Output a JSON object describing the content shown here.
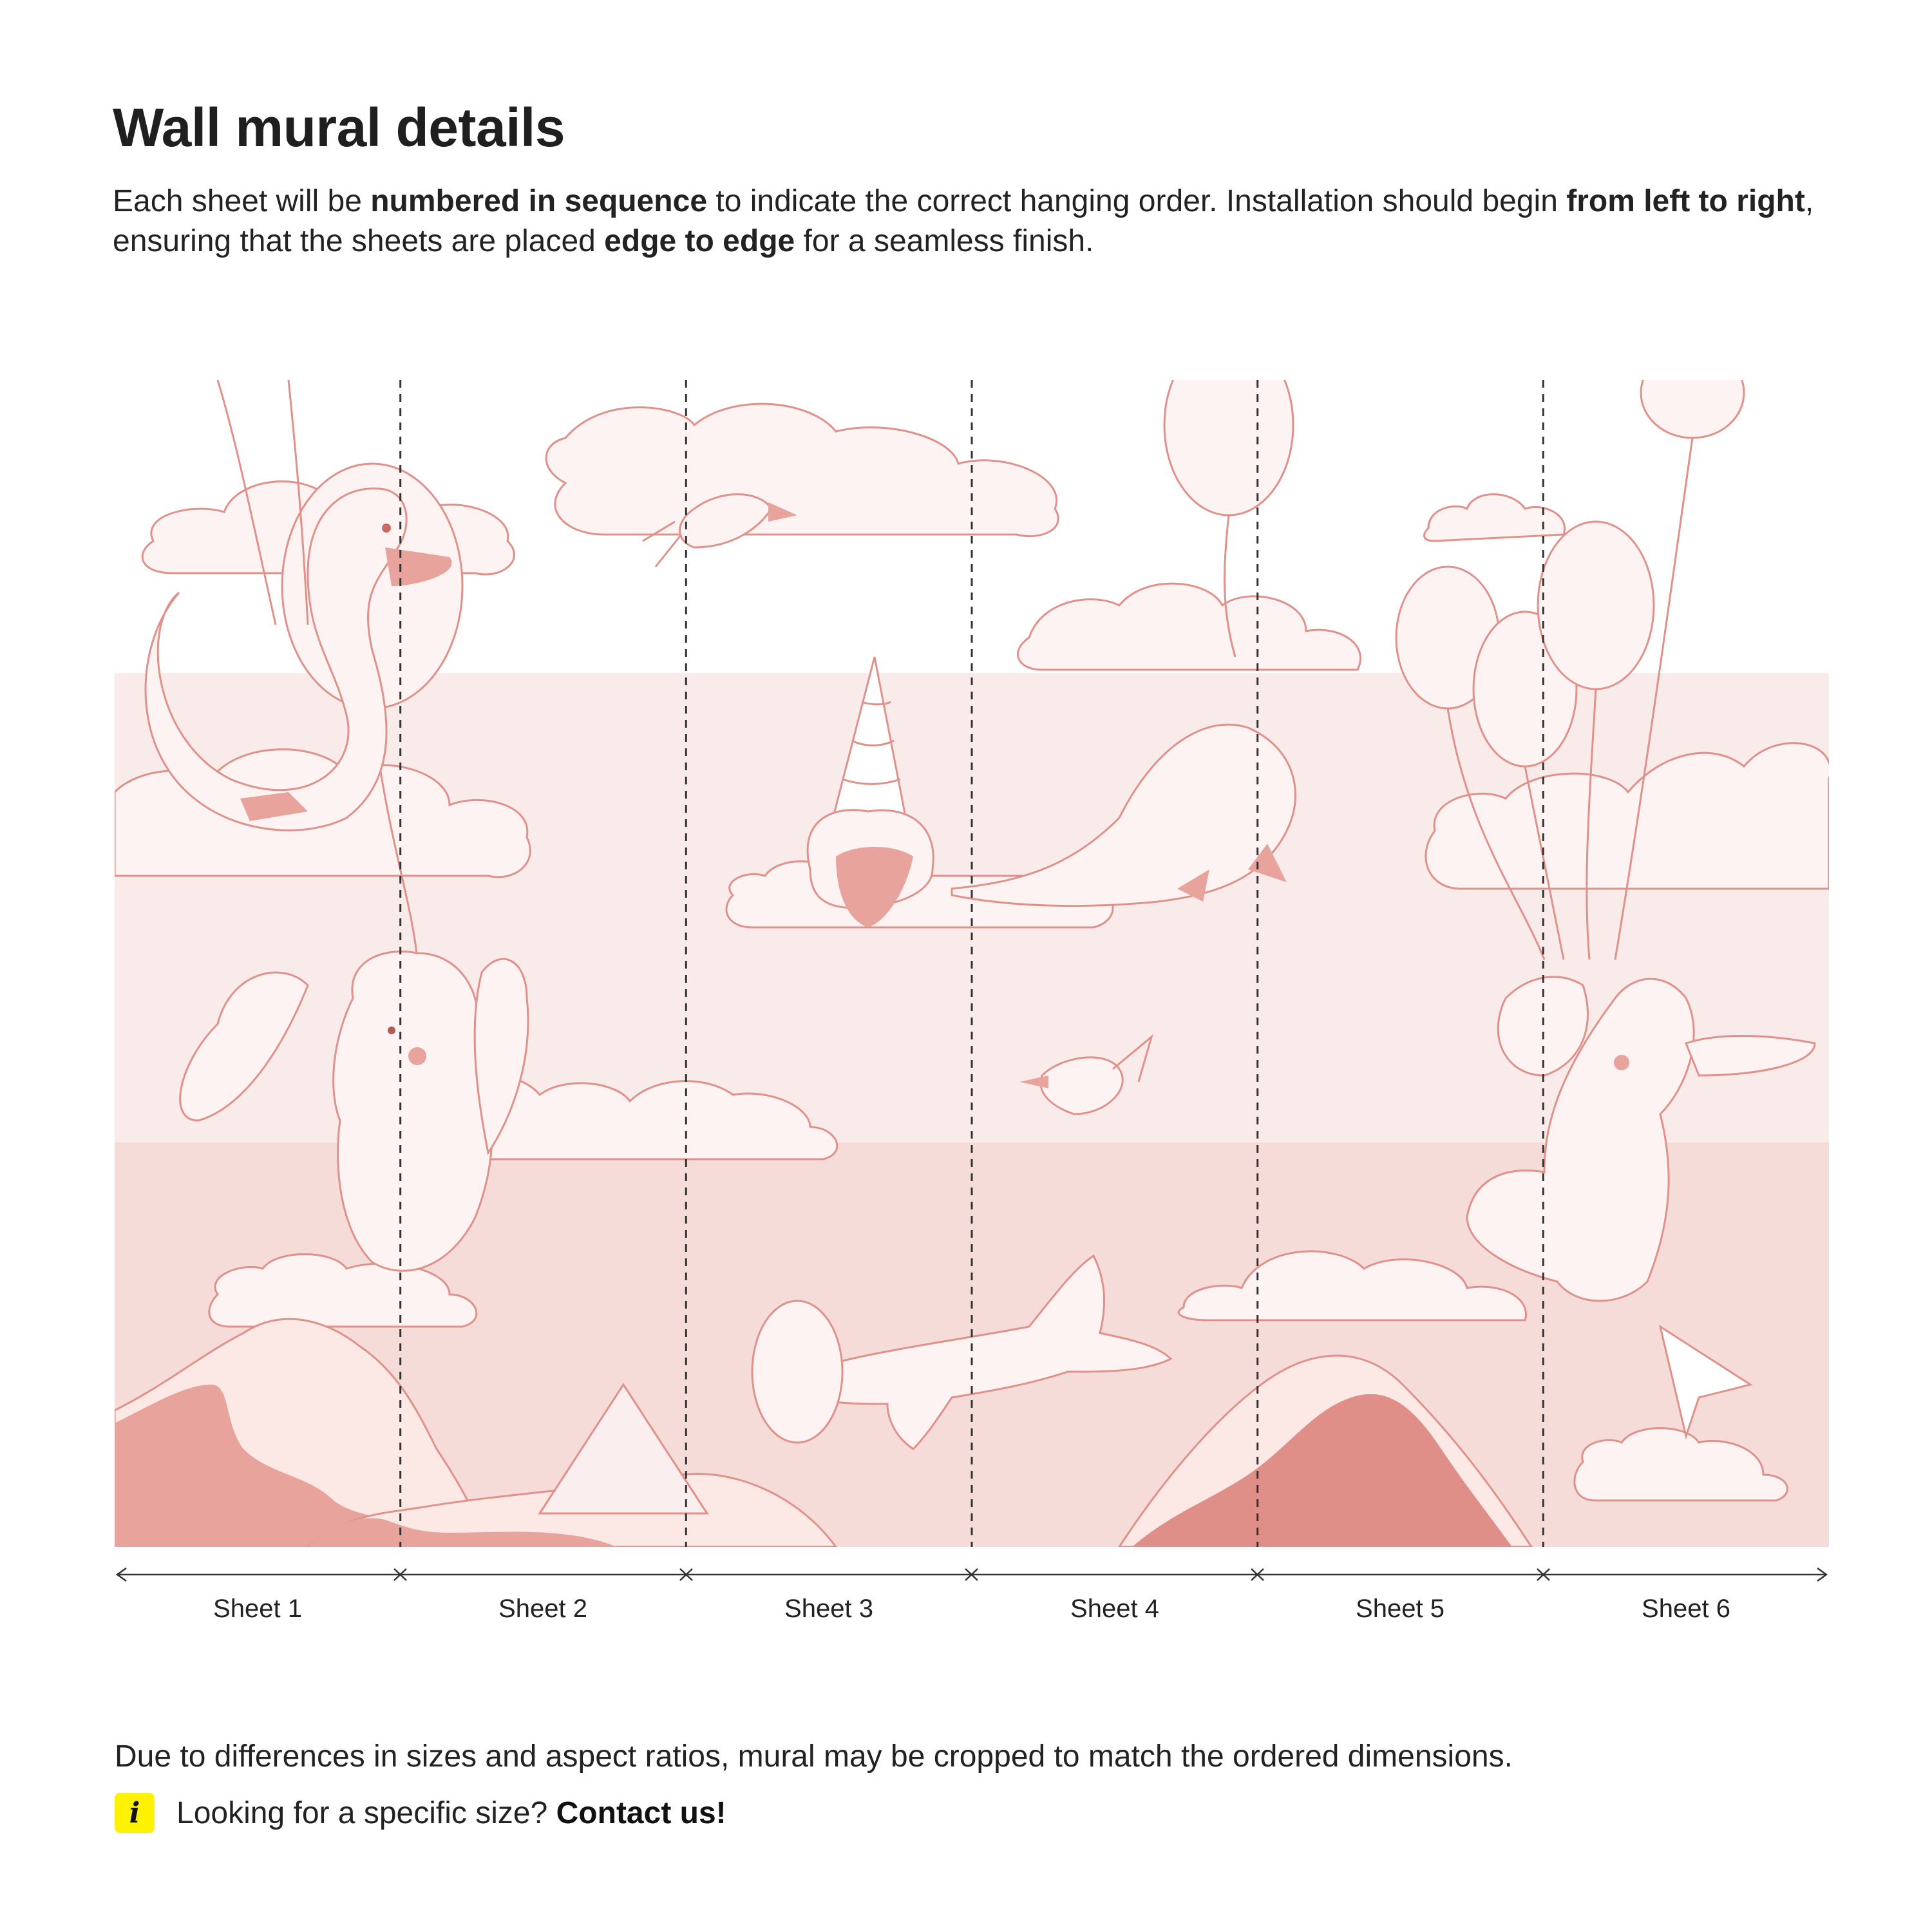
{
  "header": {
    "title": "Wall mural details",
    "intro": {
      "t1": "Each sheet will be ",
      "b1": "numbered in sequence",
      "t2": " to indicate the correct hanging order. Installation should begin ",
      "b2": "from left to right",
      "t3": ", ensuring that the sheets are placed ",
      "b3": "edge to edge",
      "t4": " for a seamless finish."
    }
  },
  "sheets": [
    "Sheet 1",
    "Sheet 2",
    "Sheet 3",
    "Sheet 4",
    "Sheet 5",
    "Sheet 6"
  ],
  "footer": {
    "note": "Due to differences in sizes and aspect ratios, mural may be cropped to match the ordered dimensions.",
    "info_icon": "i",
    "info_text": "Looking for a specific size? ",
    "contact_label": "Contact us!"
  },
  "colors": {
    "band_light": "#f8ebea",
    "band_mid": "#f5dcd8",
    "cloud_fill": "#fdf3f2",
    "line": "#e0918a",
    "mountain": "#e7a39c",
    "mountain_dark": "#e08f88",
    "snow": "#fce9e6",
    "info_yellow": "#fff200"
  }
}
